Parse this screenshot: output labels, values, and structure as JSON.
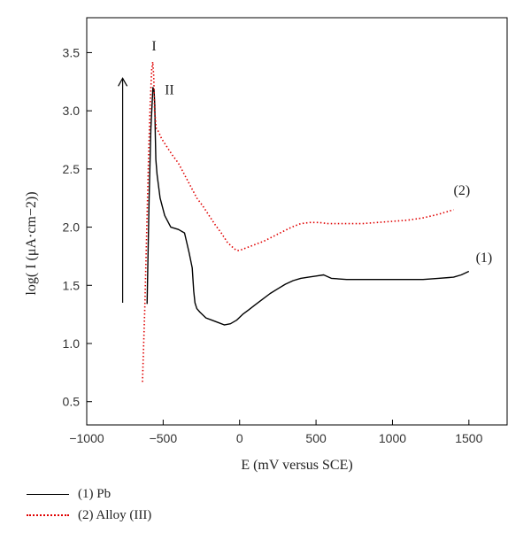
{
  "chart_data": {
    "type": "line",
    "xlabel": "E (mV versus SCE)",
    "ylabel": "log( I (μA·cm−2))",
    "xlim": [
      -1000,
      1750
    ],
    "ylim": [
      0.3,
      3.8
    ],
    "xticks": [
      -1000,
      -500,
      0,
      500,
      1000,
      1500
    ],
    "yticks": [
      0.5,
      1.0,
      1.5,
      2.0,
      2.5,
      3.0,
      3.5
    ],
    "annotations": [
      "I",
      "II"
    ],
    "series": [
      {
        "name": "(1) Pb",
        "label": "(1)",
        "color": "#000000",
        "style": "solid",
        "x": [
          -605,
          -592,
          -580,
          -567,
          -560,
          -555,
          -552,
          -548,
          -540,
          -520,
          -490,
          -450,
          -400,
          -360,
          -330,
          -310,
          -300,
          -292,
          -280,
          -260,
          -220,
          -180,
          -140,
          -100,
          -60,
          -20,
          20,
          60,
          100,
          150,
          200,
          250,
          300,
          350,
          400,
          450,
          500,
          550,
          600,
          700,
          800,
          900,
          1000,
          1100,
          1200,
          1300,
          1400,
          1450,
          1500
        ],
        "y": [
          1.34,
          2.25,
          2.85,
          3.2,
          3.18,
          3.05,
          2.82,
          2.58,
          2.45,
          2.25,
          2.1,
          2.0,
          1.98,
          1.95,
          1.78,
          1.65,
          1.45,
          1.35,
          1.3,
          1.27,
          1.22,
          1.2,
          1.18,
          1.16,
          1.17,
          1.2,
          1.25,
          1.29,
          1.33,
          1.38,
          1.43,
          1.47,
          1.51,
          1.54,
          1.56,
          1.57,
          1.58,
          1.59,
          1.56,
          1.55,
          1.55,
          1.55,
          1.55,
          1.55,
          1.55,
          1.56,
          1.57,
          1.59,
          1.62
        ]
      },
      {
        "name": "(2) Alloy (III)",
        "label": "(2)",
        "color": "#e00000",
        "style": "dotted",
        "x": [
          -635,
          -620,
          -605,
          -595,
          -585,
          -575,
          -568,
          -562,
          -556,
          -545,
          -530,
          -510,
          -480,
          -440,
          -400,
          -360,
          -320,
          -280,
          -240,
          -200,
          -160,
          -120,
          -80,
          -40,
          -20,
          0,
          40,
          100,
          160,
          220,
          280,
          340,
          400,
          460,
          520,
          580,
          640,
          700,
          800,
          900,
          1000,
          1100,
          1200,
          1300,
          1400
        ],
        "y": [
          0.67,
          1.3,
          2.1,
          2.65,
          3.05,
          3.35,
          3.42,
          3.3,
          3.0,
          2.85,
          2.82,
          2.76,
          2.7,
          2.62,
          2.55,
          2.45,
          2.35,
          2.25,
          2.18,
          2.1,
          2.02,
          1.95,
          1.87,
          1.82,
          1.8,
          1.8,
          1.82,
          1.85,
          1.88,
          1.92,
          1.96,
          2.0,
          2.03,
          2.04,
          2.04,
          2.03,
          2.03,
          2.03,
          2.03,
          2.04,
          2.05,
          2.06,
          2.08,
          2.11,
          2.15
        ]
      }
    ]
  }
}
